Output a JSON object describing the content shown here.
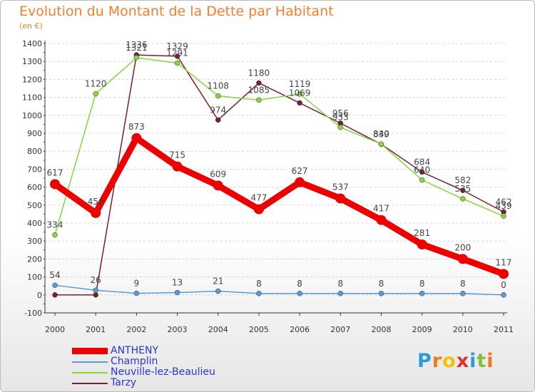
{
  "chart_data": {
    "type": "line",
    "title": "Evolution du Montant de la Dette par Habitant",
    "subtitle": "(en €)",
    "categories": [
      "2000",
      "2001",
      "2002",
      "2003",
      "2004",
      "2005",
      "2006",
      "2007",
      "2008",
      "2009",
      "2010",
      "2011"
    ],
    "y_ticks": [
      "-100",
      "0",
      "100",
      "200",
      "300",
      "400",
      "500",
      "600",
      "700",
      "800",
      "900",
      "1000",
      "1100",
      "1200",
      "1300",
      "1400"
    ],
    "ylim": [
      -100,
      1400
    ],
    "grid": "horizontal dashed",
    "legend_position": "bottom-left",
    "series": [
      {
        "name": "Tarzy",
        "color": "#7a1f2b",
        "width": 1.5,
        "marker": 3.5,
        "values": [
          0,
          0,
          1336,
          1329,
          974,
          1180,
          1069,
          956,
          839,
          684,
          582,
          462
        ],
        "labels": [
          "",
          "",
          "1336",
          "1329",
          "974",
          "1180",
          "1069",
          "956",
          "839",
          "684",
          "582",
          "462"
        ]
      },
      {
        "name": "Neuville-lez-Beaulieu",
        "color": "#86d640",
        "width": 1.5,
        "marker": 3.5,
        "values": [
          334,
          1120,
          1321,
          1291,
          1108,
          1085,
          1119,
          933,
          840,
          640,
          535,
          439
        ],
        "labels": [
          "334",
          "1120",
          "1321",
          "1291",
          "1108",
          "1085",
          "1119",
          "933",
          "840",
          "640",
          "535",
          "439"
        ]
      },
      {
        "name": "Champlin",
        "color": "#5b9bd5",
        "width": 1.5,
        "marker": 3.5,
        "values": [
          54,
          26,
          9,
          13,
          21,
          8,
          8,
          8,
          8,
          8,
          8,
          0
        ],
        "labels": [
          "54",
          "26",
          "9",
          "13",
          "21",
          "8",
          "8",
          "8",
          "8",
          "8",
          "8",
          "0"
        ]
      },
      {
        "name": "ANTHENY",
        "color": "#ee0000",
        "width": 9,
        "marker": 7,
        "values": [
          617,
          456,
          873,
          715,
          609,
          477,
          627,
          537,
          417,
          281,
          200,
          117
        ],
        "labels": [
          "617",
          "456",
          "873",
          "715",
          "609",
          "477",
          "627",
          "537",
          "417",
          "281",
          "200",
          "117"
        ]
      }
    ],
    "legend": [
      {
        "name": "ANTHENY",
        "color": "#ee0000",
        "thickness": 9
      },
      {
        "name": "Champlin",
        "color": "#5b9bd5",
        "thickness": 2
      },
      {
        "name": "Neuville-lez-Beaulieu",
        "color": "#86d640",
        "thickness": 2
      },
      {
        "name": "Tarzy",
        "color": "#7a1f2b",
        "thickness": 2
      }
    ]
  },
  "logo": {
    "text": "Proxiti",
    "letters": [
      {
        "ch": "P",
        "color": "#2d9ad6"
      },
      {
        "ch": "r",
        "color": "#f07a1a"
      },
      {
        "ch": "o",
        "color": "#f2c200"
      },
      {
        "ch": "x",
        "color": "#e03030"
      },
      {
        "ch": "i",
        "color": "#2d9ad6"
      },
      {
        "ch": "t",
        "color": "#7ec23a"
      },
      {
        "ch": "i",
        "color": "#f07a1a"
      }
    ]
  }
}
